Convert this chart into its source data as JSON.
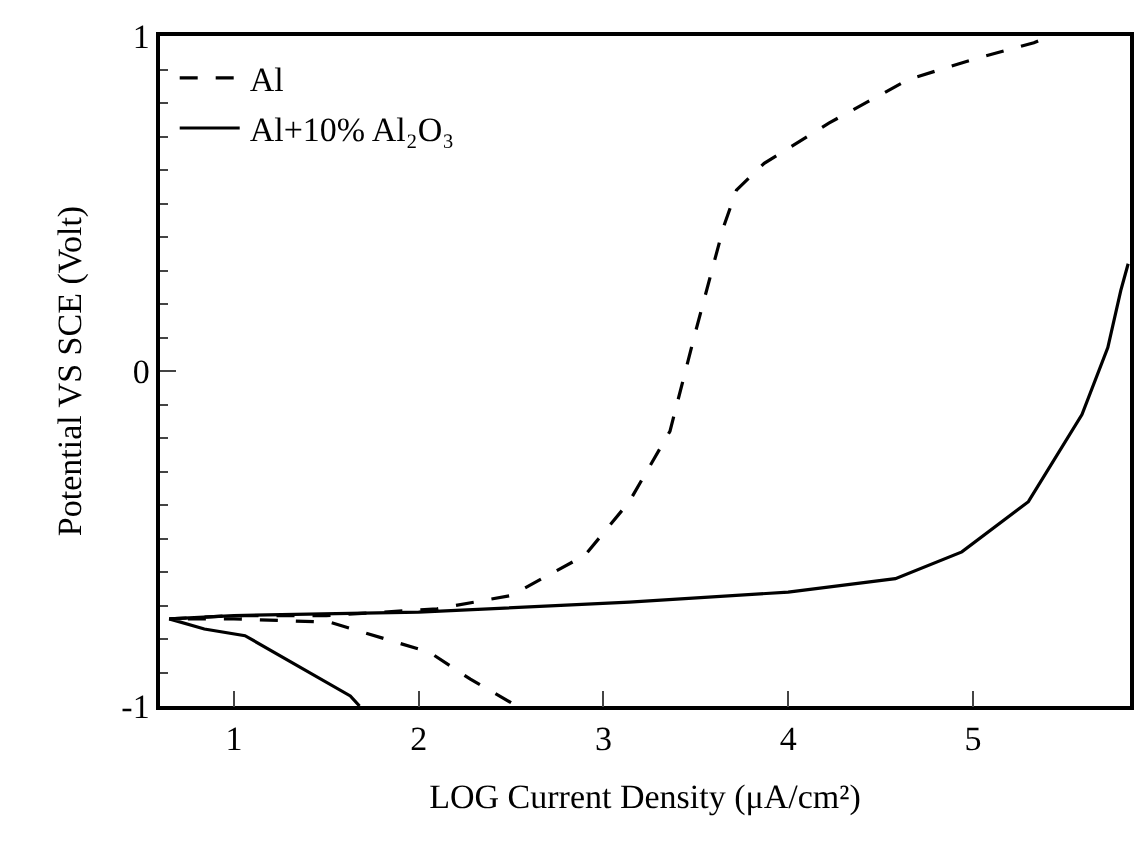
{
  "chart_data": {
    "type": "line",
    "xlabel": "LOG Current Density (μA/cm²)",
    "ylabel": "Potential VS SCE (Volt)",
    "xlim": [
      0.6,
      5.85
    ],
    "xticks": [
      1,
      2,
      3,
      4,
      5
    ],
    "ylim": [
      -1,
      1
    ],
    "yticks": [
      -1,
      0,
      1
    ],
    "legend": "top left",
    "series": [
      {
        "name": "Al",
        "color": "#000000",
        "line_style": "dashed",
        "x": [
          2.5,
          2.28,
          2.06,
          1.52,
          1.0,
          0.65,
          1.0,
          1.5,
          2.1,
          2.5,
          2.9,
          3.14,
          3.36,
          3.5,
          3.65,
          3.72,
          3.87,
          4.22,
          4.65,
          5.0,
          5.33,
          5.42
        ],
        "values": [
          -0.99,
          -0.92,
          -0.84,
          -0.75,
          -0.74,
          -0.74,
          -0.73,
          -0.73,
          -0.71,
          -0.67,
          -0.55,
          -0.39,
          -0.18,
          0.12,
          0.43,
          0.54,
          0.62,
          0.74,
          0.87,
          0.93,
          0.98,
          1.0
        ]
      },
      {
        "name": "Al+10% Al₂O₃",
        "color": "#000000",
        "line_style": "solid",
        "x": [
          1.68,
          1.63,
          1.06,
          0.84,
          0.65,
          1.0,
          2.0,
          3.14,
          4.0,
          4.58,
          4.94,
          5.3,
          5.59,
          5.73,
          5.8,
          5.84
        ],
        "values": [
          -1.0,
          -0.97,
          -0.79,
          -0.77,
          -0.74,
          -0.73,
          -0.72,
          -0.69,
          -0.66,
          -0.62,
          -0.54,
          -0.39,
          -0.13,
          0.07,
          0.24,
          0.32
        ]
      }
    ]
  }
}
